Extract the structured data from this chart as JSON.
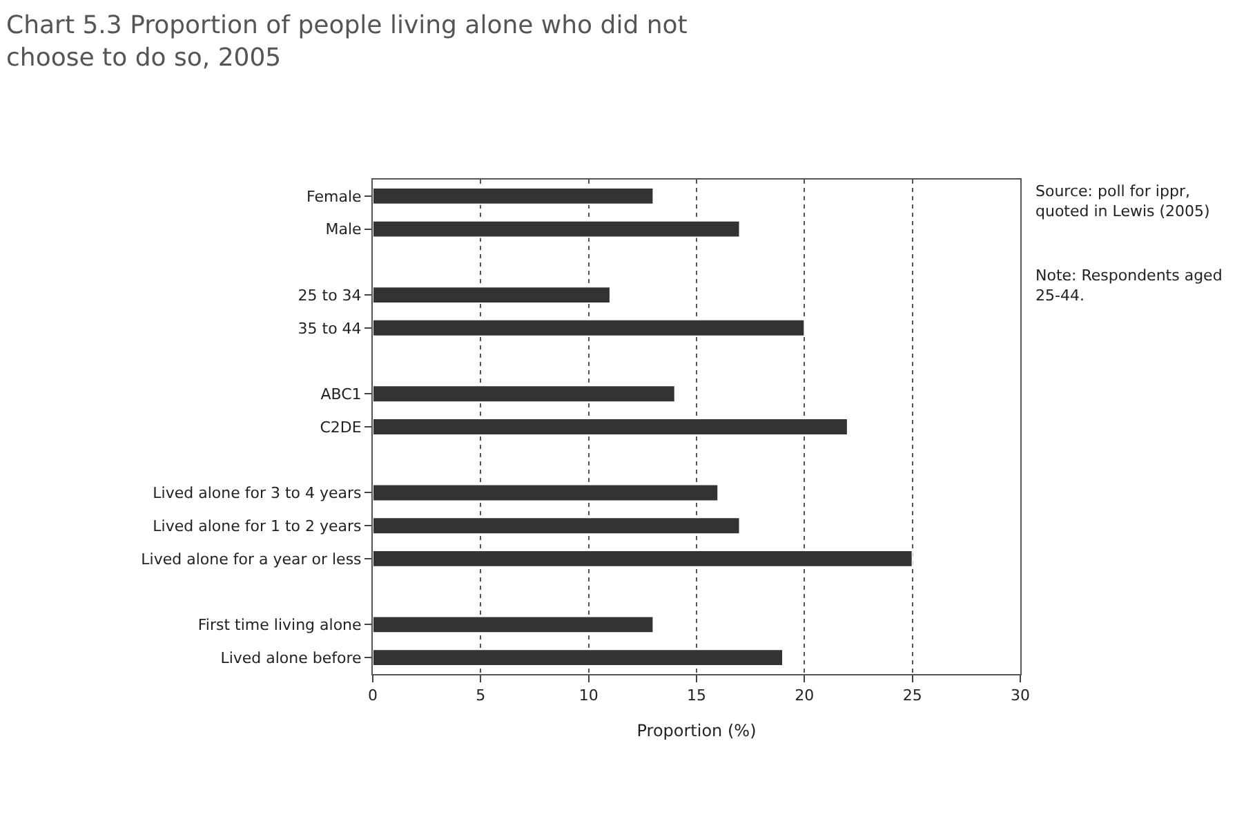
{
  "chart_data": {
    "type": "bar",
    "orientation": "horizontal",
    "title": "Chart 5.3 Proportion of people living alone who did not choose to do so, 2005",
    "xlabel": "Proportion (%)",
    "categories": [
      "Female",
      "Male",
      null,
      "25 to 34",
      "35 to 44",
      null,
      "ABC1",
      "C2DE",
      null,
      "Lived alone for 3 to 4 years",
      "Lived alone for 1 to 2 years",
      "Lived alone for a year or less",
      null,
      "First time living alone",
      "Lived alone before"
    ],
    "values": [
      13,
      17,
      null,
      11,
      20,
      null,
      14,
      22,
      null,
      16,
      17,
      25,
      null,
      13,
      19
    ],
    "color": "#333333",
    "xlim": [
      0,
      30
    ],
    "xticks": [
      0,
      5,
      10,
      15,
      20,
      25,
      30
    ],
    "grid": "x",
    "legend": false,
    "annotations": [
      "Source: poll for ippr, quoted in Lewis (2005)",
      "Note: Respondents aged 25-44."
    ]
  }
}
